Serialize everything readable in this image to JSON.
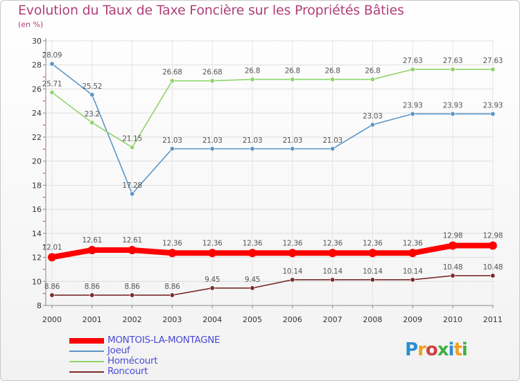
{
  "chart_data": {
    "type": "line",
    "title": "Evolution du Taux de Taxe Foncière sur les Propriétés Bâties",
    "ylabel": "(en %)",
    "xlabel": "",
    "ylim": [
      8,
      30
    ],
    "yticks": [
      8,
      10,
      12,
      14,
      16,
      18,
      20,
      22,
      24,
      26,
      28,
      30
    ],
    "x": [
      "2000",
      "2001",
      "2002",
      "2003",
      "2004",
      "2005",
      "2006",
      "2007",
      "2008",
      "2009",
      "2010",
      "2011"
    ],
    "grid": true,
    "series": [
      {
        "name": "MONTOIS-LA-MONTAGNE",
        "color": "#ff0000",
        "values": [
          12.01,
          12.61,
          12.61,
          12.36,
          12.36,
          12.36,
          12.36,
          12.36,
          12.36,
          12.36,
          12.98,
          12.98
        ],
        "labels": [
          "12.01",
          "12.61",
          "12.61",
          "12.36",
          "12.36",
          "12.36",
          "12.36",
          "12.36",
          "12.36",
          "12.36",
          "12.98",
          "12.98"
        ]
      },
      {
        "name": "Joeuf",
        "color": "#5a96c8",
        "values": [
          28.09,
          25.52,
          17.28,
          21.03,
          21.03,
          21.03,
          21.03,
          21.03,
          23.03,
          23.93,
          23.93,
          23.93
        ],
        "labels": [
          "28.09",
          "25.52",
          "17.28",
          "21.03",
          "21.03",
          "21.03",
          "21.03",
          "21.03",
          "23.03",
          "23.93",
          "23.93",
          "23.93"
        ]
      },
      {
        "name": "Homécourt",
        "color": "#8ed46a",
        "values": [
          25.71,
          23.2,
          21.15,
          26.68,
          26.68,
          26.8,
          26.8,
          26.8,
          26.8,
          27.63,
          27.63,
          27.63
        ],
        "labels": [
          "25.71",
          "23.2",
          "21.15",
          "26.68",
          "26.68",
          "26.8",
          "26.8",
          "26.8",
          "26.8",
          "27.63",
          "27.63",
          "27.63"
        ]
      },
      {
        "name": "Roncourt",
        "color": "#7a2a2a",
        "values": [
          8.86,
          8.86,
          8.86,
          8.86,
          9.45,
          9.45,
          10.14,
          10.14,
          10.14,
          10.14,
          10.48,
          10.48
        ],
        "labels": [
          "8.86",
          "8.86",
          "8.86",
          "8.86",
          "9.45",
          "9.45",
          "10.14",
          "10.14",
          "10.14",
          "10.14",
          "10.48",
          "10.48"
        ]
      }
    ]
  },
  "logo": {
    "text": "Proxiti",
    "colors": [
      "#2a8fd0",
      "#f0a020",
      "#d04040",
      "#40b040",
      "#2a8fd0",
      "#f0a020",
      "#40b040"
    ]
  }
}
